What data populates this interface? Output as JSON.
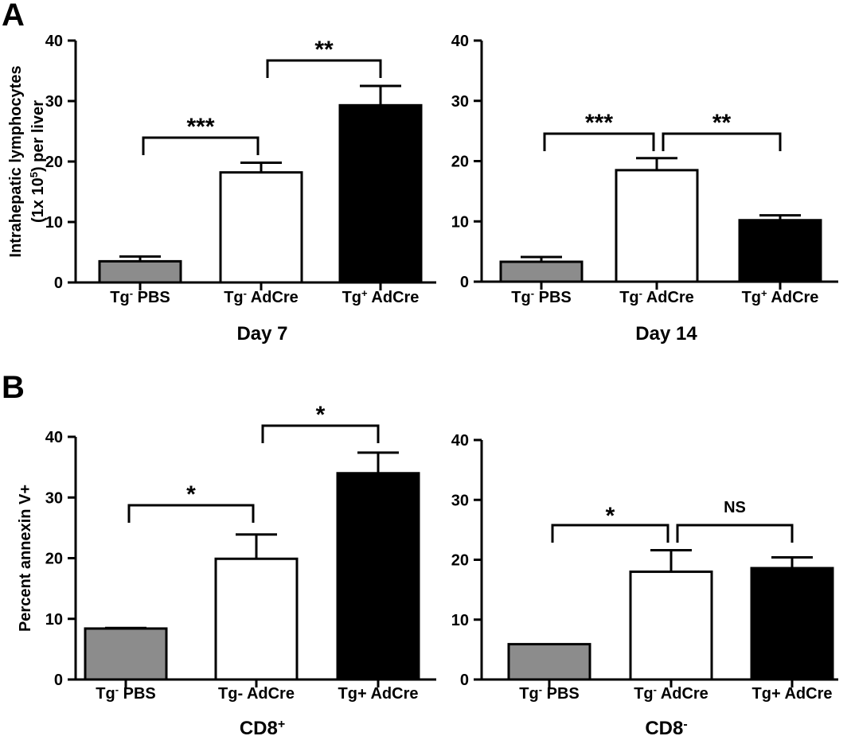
{
  "chart_data": [
    {
      "panel_label": "A",
      "type": "bar",
      "categories": [
        {
          "base": "Tg",
          "sup": "-",
          "rest": " PBS"
        },
        {
          "base": "Tg",
          "sup": "-",
          "rest": " AdCre"
        },
        {
          "base": "Tg",
          "sup": "+",
          "rest": " AdCre"
        }
      ],
      "values": [
        3.5,
        18.2,
        29.3
      ],
      "errors": [
        0.8,
        1.6,
        3.2
      ],
      "colors": [
        "#8c8c8c",
        "#ffffff",
        "#000000"
      ],
      "title": "Day 7",
      "title_sup": "",
      "ylabel_lines": [
        {
          "text": "Intrahepatic lymphocytes"
        },
        {
          "pre": "(1x 10",
          "sup": "5",
          "post": ") per liver"
        }
      ],
      "ylim": [
        0,
        40
      ],
      "yticks": [
        0,
        10,
        20,
        30,
        40
      ],
      "brackets": [
        {
          "from": 0,
          "to": 1,
          "label": "***"
        },
        {
          "from": 1,
          "to": 2,
          "label": "**"
        }
      ]
    },
    {
      "type": "bar",
      "categories": [
        {
          "base": "Tg",
          "sup": "-",
          "rest": " PBS"
        },
        {
          "base": "Tg",
          "sup": "-",
          "rest": " AdCre"
        },
        {
          "base": "Tg",
          "sup": "+",
          "rest": " AdCre"
        }
      ],
      "values": [
        3.3,
        18.5,
        10.2
      ],
      "errors": [
        0.8,
        2.0,
        0.8
      ],
      "colors": [
        "#8c8c8c",
        "#ffffff",
        "#000000"
      ],
      "title": "Day 14",
      "title_sup": "",
      "ylim": [
        0,
        40
      ],
      "yticks": [
        0,
        10,
        20,
        30,
        40
      ],
      "brackets": [
        {
          "from": 0,
          "to": 1,
          "label": "***"
        },
        {
          "from": 1,
          "to": 2,
          "label": "**"
        }
      ]
    },
    {
      "panel_label": "B",
      "type": "bar",
      "categories": [
        {
          "base": "Tg",
          "sup": "-",
          "rest": " PBS"
        },
        {
          "base": "Tg- AdCre",
          "sup": "",
          "rest": ""
        },
        {
          "base": "Tg+ AdCre",
          "sup": "",
          "rest": ""
        }
      ],
      "values": [
        8.4,
        19.9,
        34.0
      ],
      "errors": [
        0.1,
        4.0,
        3.4
      ],
      "colors": [
        "#8c8c8c",
        "#ffffff",
        "#000000"
      ],
      "title": "CD8",
      "title_sup": "+",
      "ylabel_lines": [
        {
          "text": "Percent annexin V+"
        }
      ],
      "ylim": [
        0,
        40
      ],
      "yticks": [
        0,
        10,
        20,
        30,
        40
      ],
      "brackets": [
        {
          "from": 0,
          "to": 1,
          "label": "*"
        },
        {
          "from": 1,
          "to": 2,
          "label": "*"
        }
      ]
    },
    {
      "type": "bar",
      "categories": [
        {
          "base": "Tg",
          "sup": "-",
          "rest": " PBS"
        },
        {
          "base": "Tg",
          "sup": "-",
          "rest": " AdCre"
        },
        {
          "base": "Tg+ AdCre",
          "sup": "",
          "rest": ""
        }
      ],
      "values": [
        5.9,
        18.0,
        18.6
      ],
      "errors": [
        0,
        3.6,
        1.8
      ],
      "colors": [
        "#8c8c8c",
        "#ffffff",
        "#000000"
      ],
      "title": "CD8",
      "title_sup": "-",
      "ylim": [
        0,
        40
      ],
      "yticks": [
        0,
        10,
        20,
        30,
        40
      ],
      "brackets": [
        {
          "from": 0,
          "to": 1,
          "label": "*"
        },
        {
          "from": 1,
          "to": 2,
          "label": "NS"
        }
      ]
    }
  ]
}
